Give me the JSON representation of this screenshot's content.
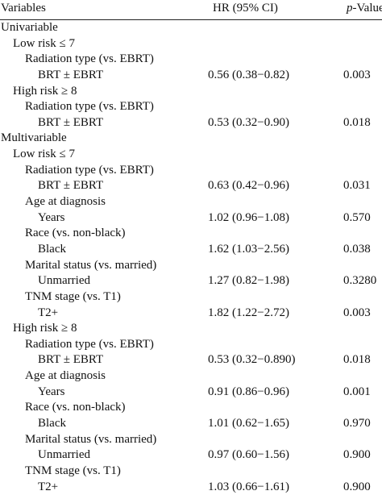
{
  "header": {
    "variables": "Variables",
    "hr": "HR (95% CI)",
    "p_italic": "p",
    "p_rest": "-Value"
  },
  "rows": [
    {
      "label": "Univariable",
      "hr": "",
      "p": "",
      "level": 0
    },
    {
      "label": "Low risk ≤ 7",
      "hr": "",
      "p": "",
      "level": 1
    },
    {
      "label": "Radiation type (vs. EBRT)",
      "hr": "",
      "p": "",
      "level": 2
    },
    {
      "label": "BRT ± EBRT",
      "hr": "0.56 (0.38−0.82)",
      "p": "0.003",
      "level": 3
    },
    {
      "label": "High risk ≥ 8",
      "hr": "",
      "p": "",
      "level": 1
    },
    {
      "label": "Radiation type (vs. EBRT)",
      "hr": "",
      "p": "",
      "level": 2
    },
    {
      "label": "BRT ± EBRT",
      "hr": "0.53 (0.32−0.90)",
      "p": "0.018",
      "level": 3
    },
    {
      "label": "Multivariable",
      "hr": "",
      "p": "",
      "level": 0
    },
    {
      "label": "Low risk ≤ 7",
      "hr": "",
      "p": "",
      "level": 1
    },
    {
      "label": "Radiation type (vs. EBRT)",
      "hr": "",
      "p": "",
      "level": 2
    },
    {
      "label": "BRT ± EBRT",
      "hr": "0.63 (0.42−0.96)",
      "p": "0.031",
      "level": 3
    },
    {
      "label": "Age at diagnosis",
      "hr": "",
      "p": "",
      "level": 2
    },
    {
      "label": "Years",
      "hr": "1.02 (0.96−1.08)",
      "p": "0.570",
      "level": 3
    },
    {
      "label": "Race (vs. non-black)",
      "hr": "",
      "p": "",
      "level": 2
    },
    {
      "label": "Black",
      "hr": "1.62 (1.03−2.56)",
      "p": "0.038",
      "level": 3
    },
    {
      "label": "Marital status (vs. married)",
      "hr": "",
      "p": "",
      "level": 2
    },
    {
      "label": "Unmarried",
      "hr": "1.27 (0.82−1.98)",
      "p": "0.3280",
      "level": 3
    },
    {
      "label": "TNM stage (vs. T1)",
      "hr": "",
      "p": "",
      "level": 2
    },
    {
      "label": "T2+",
      "hr": "1.82 (1.22−2.72)",
      "p": "0.003",
      "level": 3
    },
    {
      "label": "High risk ≥ 8",
      "hr": "",
      "p": "",
      "level": 1
    },
    {
      "label": "Radiation type (vs. EBRT)",
      "hr": "",
      "p": "",
      "level": 2
    },
    {
      "label": "BRT ± EBRT",
      "hr": "0.53 (0.32−0.890)",
      "p": "0.018",
      "level": 3
    },
    {
      "label": "Age at diagnosis",
      "hr": "",
      "p": "",
      "level": 2
    },
    {
      "label": "Years",
      "hr": "0.91 (0.86−0.96)",
      "p": "0.001",
      "level": 3
    },
    {
      "label": "Race (vs. non-black)",
      "hr": "",
      "p": "",
      "level": 2
    },
    {
      "label": "Black",
      "hr": "1.01 (0.62−1.65)",
      "p": "0.970",
      "level": 3
    },
    {
      "label": "Marital status (vs. married)",
      "hr": "",
      "p": "",
      "level": 2
    },
    {
      "label": "Unmarried",
      "hr": "0.97 (0.60−1.56)",
      "p": "0.900",
      "level": 3
    },
    {
      "label": "TNM stage (vs. T1)",
      "hr": "",
      "p": "",
      "level": 2
    },
    {
      "label": "T2+",
      "hr": "1.03 (0.66−1.61)",
      "p": "0.900",
      "level": 3
    }
  ]
}
